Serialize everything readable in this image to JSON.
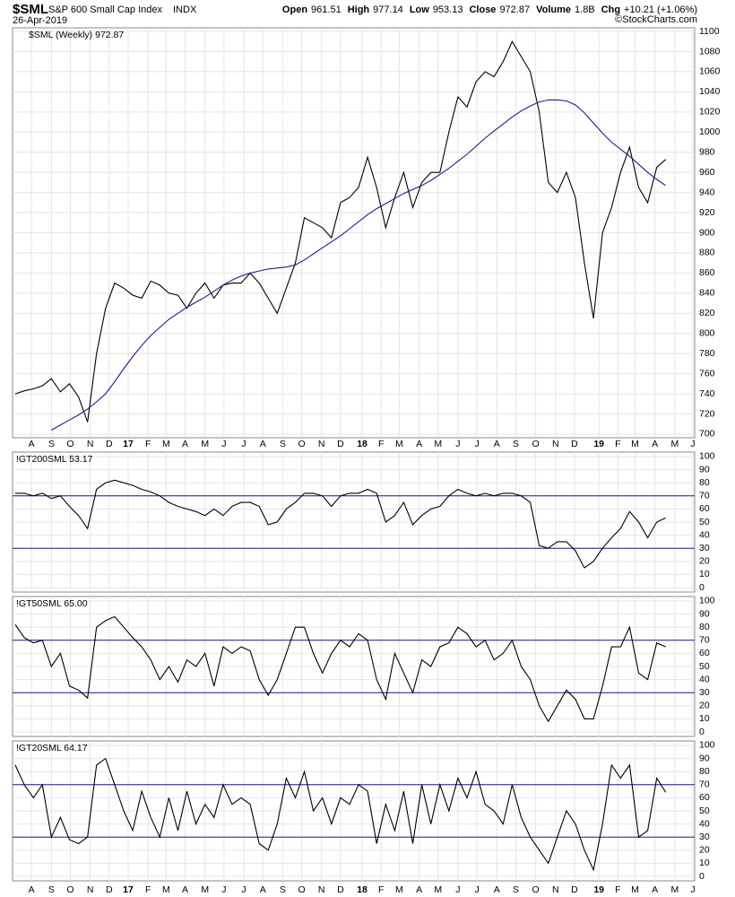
{
  "header": {
    "symbol": "$SML",
    "name": "S&P 600 Small Cap Index",
    "exchange": "INDX",
    "date": "26-Apr-2019",
    "copyright": "©StockCharts.com",
    "quote": [
      {
        "label": "Open",
        "value": "961.51"
      },
      {
        "label": "High",
        "value": "977.14"
      },
      {
        "label": "Low",
        "value": "953.13"
      },
      {
        "label": "Close",
        "value": "972.87"
      },
      {
        "label": "Volume",
        "value": "1.8B"
      },
      {
        "label": "Chg",
        "value": "+10.21 (+1.06%)"
      }
    ]
  },
  "chart_data": [
    {
      "type": "line",
      "legend": "$SML (Weekly) 972.87",
      "ylim": [
        696.4,
        1103.6
      ],
      "yticks": [
        700,
        720,
        740,
        760,
        780,
        800,
        820,
        840,
        860,
        880,
        900,
        920,
        940,
        960,
        980,
        1000,
        1020,
        1040,
        1060,
        1080,
        1100
      ],
      "xlim": [
        -0.3,
        75.2
      ],
      "xticks": [
        {
          "value": 1.8,
          "label": "A"
        },
        {
          "value": 4.0,
          "label": "S"
        },
        {
          "value": 6.1,
          "label": "O"
        },
        {
          "value": 8.3,
          "label": "N"
        },
        {
          "value": 10.4,
          "label": "D"
        },
        {
          "value": 12.5,
          "label": "17"
        },
        {
          "value": 14.7,
          "label": "F"
        },
        {
          "value": 16.7,
          "label": "M"
        },
        {
          "value": 18.8,
          "label": "A"
        },
        {
          "value": 21.0,
          "label": "M"
        },
        {
          "value": 23.1,
          "label": "J"
        },
        {
          "value": 25.3,
          "label": "J"
        },
        {
          "value": 27.4,
          "label": "A"
        },
        {
          "value": 29.6,
          "label": "S"
        },
        {
          "value": 31.7,
          "label": "O"
        },
        {
          "value": 33.9,
          "label": "N"
        },
        {
          "value": 36.0,
          "label": "D"
        },
        {
          "value": 38.4,
          "label": "18"
        },
        {
          "value": 40.5,
          "label": "F"
        },
        {
          "value": 42.5,
          "label": "M"
        },
        {
          "value": 44.7,
          "label": "A"
        },
        {
          "value": 46.8,
          "label": "M"
        },
        {
          "value": 49.0,
          "label": "J"
        },
        {
          "value": 51.1,
          "label": "J"
        },
        {
          "value": 53.3,
          "label": "A"
        },
        {
          "value": 55.4,
          "label": "S"
        },
        {
          "value": 57.6,
          "label": "O"
        },
        {
          "value": 59.8,
          "label": "N"
        },
        {
          "value": 61.9,
          "label": "D"
        },
        {
          "value": 64.6,
          "label": "19"
        },
        {
          "value": 66.7,
          "label": "F"
        },
        {
          "value": 68.6,
          "label": "M"
        },
        {
          "value": 70.8,
          "label": "A"
        },
        {
          "value": 73.0,
          "label": "M"
        },
        {
          "value": 75.0,
          "label": "J"
        }
      ],
      "series": [
        {
          "color": "#000000",
          "values": [
            740,
            743,
            745,
            748,
            755,
            742,
            750,
            737,
            712,
            780,
            825,
            850,
            845,
            838,
            835,
            852,
            848,
            840,
            838,
            825,
            840,
            850,
            835,
            848,
            850,
            850,
            860,
            850,
            835,
            820,
            845,
            870,
            915,
            910,
            905,
            895,
            930,
            935,
            945,
            975,
            945,
            905,
            935,
            960,
            925,
            950,
            960,
            960,
            1000,
            1035,
            1025,
            1050,
            1060,
            1055,
            1070,
            1090,
            1075,
            1060,
            1020,
            950,
            940,
            960,
            935,
            870,
            815,
            900,
            925,
            960,
            985,
            945,
            930,
            965,
            972.87
          ]
        },
        {
          "color": "#1c1c8c",
          "values": [
            null,
            null,
            null,
            null,
            704,
            709,
            714,
            719,
            725,
            732,
            740,
            752,
            765,
            777,
            788,
            798,
            806,
            814,
            820,
            826,
            831,
            836,
            842,
            848,
            853,
            857,
            860,
            862,
            864,
            865,
            866,
            868,
            873,
            879,
            885,
            891,
            897,
            904,
            911,
            918,
            924,
            929,
            934,
            939,
            943,
            947,
            952,
            958,
            964,
            971,
            978,
            986,
            994,
            1001,
            1008,
            1015,
            1021,
            1026,
            1030,
            1032,
            1032,
            1031,
            1027,
            1019,
            1009,
            999,
            990,
            983,
            976,
            968,
            960,
            953,
            947
          ]
        }
      ]
    },
    {
      "type": "line",
      "legend": "!GT200SML 53.17",
      "ylim": [
        -3.4,
        103.4
      ],
      "yticks": [
        0,
        10,
        20,
        30,
        40,
        50,
        60,
        70,
        80,
        90,
        100
      ],
      "reference_lines": [
        30,
        70
      ],
      "ref_color": "#1c1c8c",
      "series": [
        {
          "color": "#000000",
          "values": [
            72,
            72,
            70,
            72,
            68,
            70,
            62,
            55,
            45,
            75,
            80,
            82,
            80,
            78,
            75,
            73,
            70,
            65,
            62,
            60,
            58,
            55,
            60,
            55,
            62,
            65,
            65,
            62,
            48,
            50,
            60,
            65,
            72,
            72,
            70,
            62,
            70,
            72,
            72,
            75,
            72,
            50,
            55,
            65,
            48,
            55,
            60,
            62,
            70,
            75,
            72,
            70,
            72,
            70,
            72,
            72,
            70,
            65,
            32,
            30,
            35,
            35,
            28,
            15,
            20,
            30,
            38,
            45,
            58,
            50,
            38,
            50,
            53.17
          ]
        }
      ]
    },
    {
      "type": "line",
      "legend": "!GT50SML 65.00",
      "ylim": [
        -3.4,
        103.4
      ],
      "yticks": [
        0,
        10,
        20,
        30,
        40,
        50,
        60,
        70,
        80,
        90,
        100
      ],
      "reference_lines": [
        30,
        70
      ],
      "ref_color": "#1c1c8c",
      "series": [
        {
          "color": "#000000",
          "values": [
            82,
            72,
            68,
            70,
            50,
            60,
            35,
            32,
            26,
            80,
            85,
            88,
            80,
            72,
            65,
            55,
            40,
            50,
            38,
            55,
            50,
            60,
            35,
            65,
            60,
            65,
            62,
            40,
            28,
            40,
            60,
            80,
            80,
            60,
            45,
            60,
            70,
            65,
            75,
            70,
            40,
            25,
            60,
            45,
            30,
            55,
            50,
            65,
            68,
            80,
            75,
            65,
            70,
            55,
            60,
            70,
            50,
            40,
            20,
            8,
            20,
            32,
            25,
            10,
            10,
            35,
            65,
            65,
            80,
            45,
            40,
            68,
            65
          ]
        }
      ]
    },
    {
      "type": "line",
      "legend": "!GT20SML 64.17",
      "ylim": [
        -3.4,
        103.4
      ],
      "yticks": [
        0,
        10,
        20,
        30,
        40,
        50,
        60,
        70,
        80,
        90,
        100
      ],
      "reference_lines": [
        30,
        70
      ],
      "ref_color": "#1c1c8c",
      "series": [
        {
          "color": "#000000",
          "values": [
            85,
            70,
            60,
            70,
            30,
            45,
            28,
            25,
            30,
            85,
            90,
            70,
            50,
            35,
            65,
            45,
            30,
            60,
            35,
            65,
            40,
            55,
            45,
            70,
            55,
            60,
            55,
            25,
            20,
            40,
            75,
            60,
            80,
            50,
            60,
            40,
            60,
            55,
            70,
            65,
            25,
            55,
            35,
            65,
            25,
            70,
            40,
            70,
            50,
            75,
            60,
            80,
            55,
            50,
            40,
            70,
            45,
            30,
            20,
            10,
            30,
            50,
            40,
            20,
            5,
            40,
            85,
            75,
            85,
            30,
            35,
            75,
            64.17
          ]
        }
      ]
    }
  ]
}
